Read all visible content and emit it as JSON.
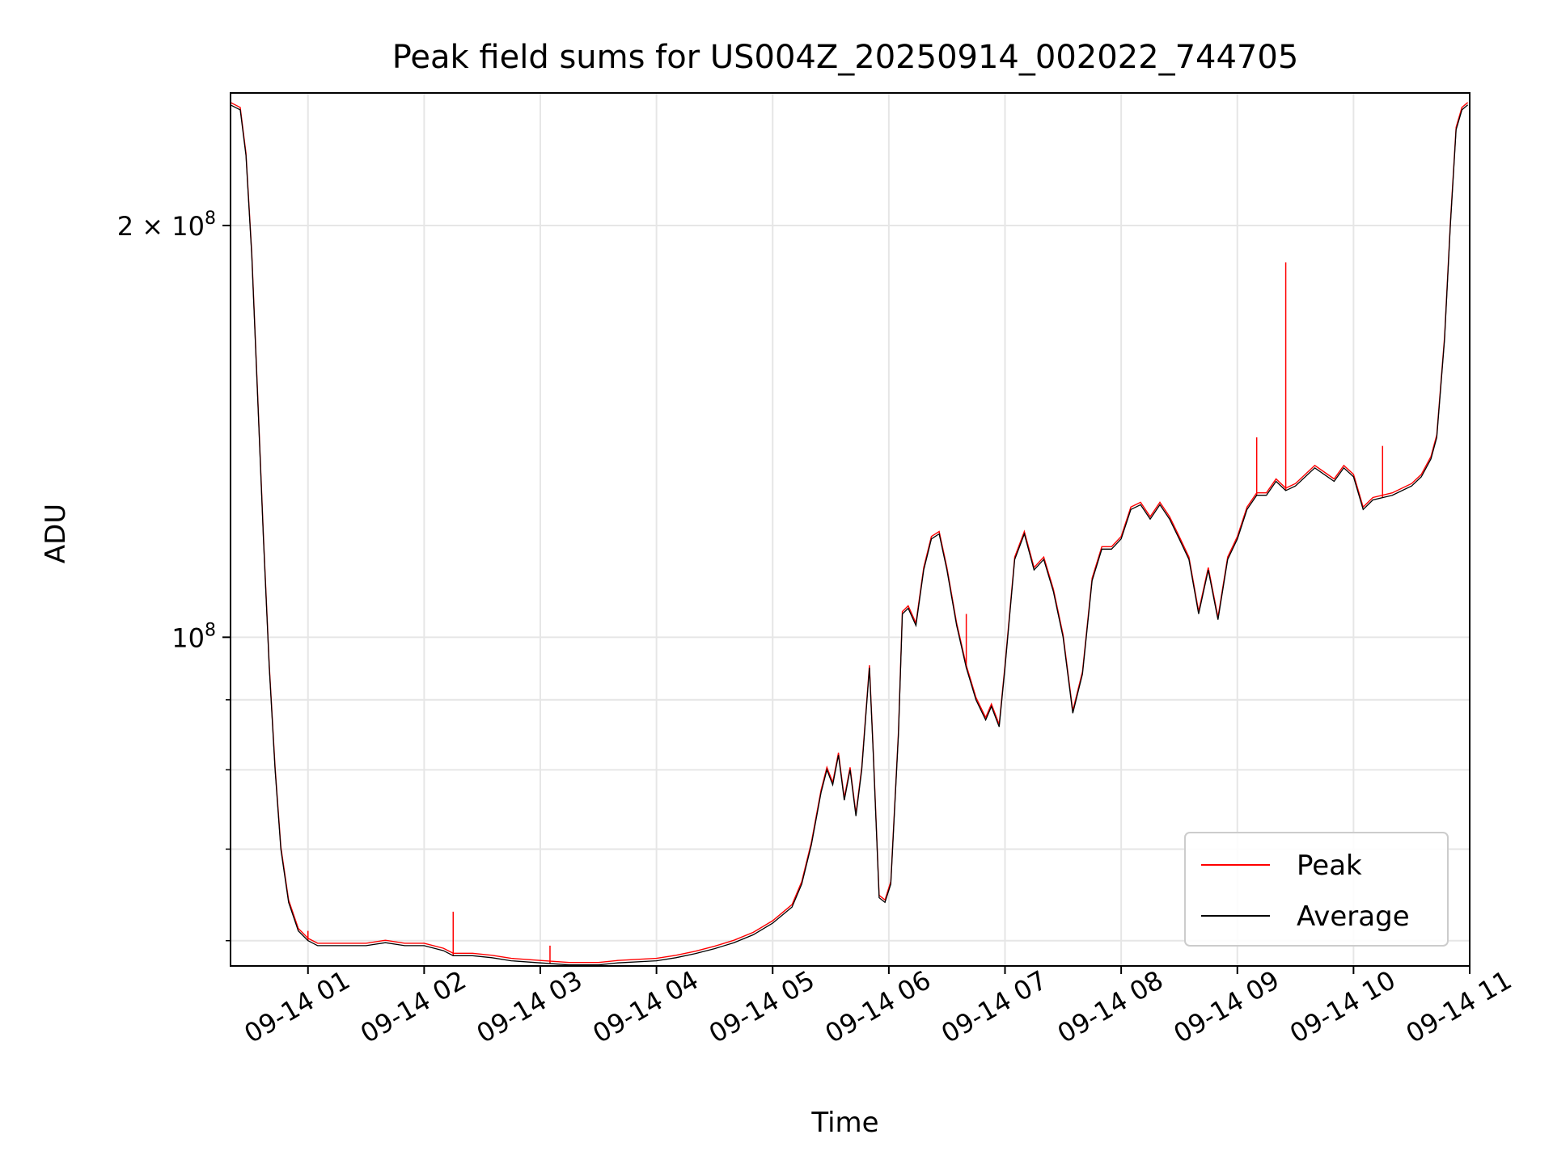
{
  "chart_data": {
    "type": "line",
    "title": "Peak field sums for US004Z_20250914_002022_744705",
    "xlabel": "Time",
    "ylabel": "ADU",
    "yscale": "log",
    "grid": true,
    "legend_position": "lower-right",
    "xlim": [
      "2025-09-14 00:20",
      "2025-09-14 11:00"
    ],
    "ylim": [
      57500000,
      250000000
    ],
    "x_ticks": [
      {
        "label": "09-14 01",
        "time": "2025-09-14 01:00"
      },
      {
        "label": "09-14 02",
        "time": "2025-09-14 02:00"
      },
      {
        "label": "09-14 03",
        "time": "2025-09-14 03:00"
      },
      {
        "label": "09-14 04",
        "time": "2025-09-14 04:00"
      },
      {
        "label": "09-14 05",
        "time": "2025-09-14 05:00"
      },
      {
        "label": "09-14 06",
        "time": "2025-09-14 06:00"
      },
      {
        "label": "09-14 07",
        "time": "2025-09-14 07:00"
      },
      {
        "label": "09-14 08",
        "time": "2025-09-14 08:00"
      },
      {
        "label": "09-14 09",
        "time": "2025-09-14 09:00"
      },
      {
        "label": "09-14 10",
        "time": "2025-09-14 10:00"
      },
      {
        "label": "09-14 11",
        "time": "2025-09-14 11:00"
      }
    ],
    "y_major_ticks": [
      {
        "value": 100000000,
        "base": "10",
        "exp": "8"
      },
      {
        "value": 200000000,
        "base": "2 × 10",
        "exp": "8"
      }
    ],
    "y_minor_ticks": [
      60000000,
      70000000,
      80000000,
      90000000
    ],
    "series": [
      {
        "name": "Average",
        "color": "#000000",
        "x": [
          "2025-09-14 00:20",
          "2025-09-14 00:25",
          "2025-09-14 00:28",
          "2025-09-14 00:31",
          "2025-09-14 00:34",
          "2025-09-14 00:37",
          "2025-09-14 00:40",
          "2025-09-14 00:43",
          "2025-09-14 00:46",
          "2025-09-14 00:50",
          "2025-09-14 00:55",
          "2025-09-14 01:00",
          "2025-09-14 01:05",
          "2025-09-14 01:10",
          "2025-09-14 01:20",
          "2025-09-14 01:30",
          "2025-09-14 01:40",
          "2025-09-14 01:50",
          "2025-09-14 02:00",
          "2025-09-14 02:10",
          "2025-09-14 02:15",
          "2025-09-14 02:25",
          "2025-09-14 02:35",
          "2025-09-14 02:45",
          "2025-09-14 03:00",
          "2025-09-14 03:15",
          "2025-09-14 03:30",
          "2025-09-14 03:40",
          "2025-09-14 04:00",
          "2025-09-14 04:10",
          "2025-09-14 04:20",
          "2025-09-14 04:30",
          "2025-09-14 04:40",
          "2025-09-14 04:50",
          "2025-09-14 05:00",
          "2025-09-14 05:10",
          "2025-09-14 05:15",
          "2025-09-14 05:20",
          "2025-09-14 05:25",
          "2025-09-14 05:28",
          "2025-09-14 05:31",
          "2025-09-14 05:34",
          "2025-09-14 05:37",
          "2025-09-14 05:40",
          "2025-09-14 05:43",
          "2025-09-14 05:46",
          "2025-09-14 05:50",
          "2025-09-14 05:52",
          "2025-09-14 05:55",
          "2025-09-14 05:58",
          "2025-09-14 06:01",
          "2025-09-14 06:05",
          "2025-09-14 06:07",
          "2025-09-14 06:10",
          "2025-09-14 06:14",
          "2025-09-14 06:18",
          "2025-09-14 06:22",
          "2025-09-14 06:26",
          "2025-09-14 06:30",
          "2025-09-14 06:35",
          "2025-09-14 06:40",
          "2025-09-14 06:45",
          "2025-09-14 06:50",
          "2025-09-14 06:53",
          "2025-09-14 06:57",
          "2025-09-14 07:00",
          "2025-09-14 07:05",
          "2025-09-14 07:10",
          "2025-09-14 07:15",
          "2025-09-14 07:20",
          "2025-09-14 07:25",
          "2025-09-14 07:30",
          "2025-09-14 07:35",
          "2025-09-14 07:40",
          "2025-09-14 07:45",
          "2025-09-14 07:50",
          "2025-09-14 07:55",
          "2025-09-14 08:00",
          "2025-09-14 08:05",
          "2025-09-14 08:10",
          "2025-09-14 08:15",
          "2025-09-14 08:20",
          "2025-09-14 08:25",
          "2025-09-14 08:30",
          "2025-09-14 08:35",
          "2025-09-14 08:40",
          "2025-09-14 08:45",
          "2025-09-14 08:50",
          "2025-09-14 08:55",
          "2025-09-14 09:00",
          "2025-09-14 09:05",
          "2025-09-14 09:10",
          "2025-09-14 09:15",
          "2025-09-14 09:20",
          "2025-09-14 09:25",
          "2025-09-14 09:30",
          "2025-09-14 09:40",
          "2025-09-14 09:50",
          "2025-09-14 09:55",
          "2025-09-14 10:00",
          "2025-09-14 10:05",
          "2025-09-14 10:10",
          "2025-09-14 10:20",
          "2025-09-14 10:30",
          "2025-09-14 10:35",
          "2025-09-14 10:40",
          "2025-09-14 10:43",
          "2025-09-14 10:47",
          "2025-09-14 10:50",
          "2025-09-14 10:53",
          "2025-09-14 10:56",
          "2025-09-14 10:59"
        ],
        "values": [
          245000000,
          243000000,
          225000000,
          190000000,
          150000000,
          118000000,
          95000000,
          80000000,
          70000000,
          64000000,
          61000000,
          60000000,
          59500000,
          59500000,
          59500000,
          59500000,
          59800000,
          59500000,
          59500000,
          59000000,
          58500000,
          58500000,
          58300000,
          58000000,
          57800000,
          57600000,
          57600000,
          57800000,
          58000000,
          58300000,
          58700000,
          59200000,
          59800000,
          60600000,
          61800000,
          63500000,
          66000000,
          70500000,
          77000000,
          80000000,
          78000000,
          82000000,
          76000000,
          80000000,
          74000000,
          80000000,
          95000000,
          82000000,
          64500000,
          64000000,
          66000000,
          85000000,
          104000000,
          105000000,
          102000000,
          112000000,
          118000000,
          119000000,
          112000000,
          102000000,
          95000000,
          90000000,
          87000000,
          89000000,
          86000000,
          95000000,
          114000000,
          119000000,
          112000000,
          114000000,
          108000000,
          100000000,
          88000000,
          94000000,
          110000000,
          116000000,
          116000000,
          118000000,
          124000000,
          125000000,
          122000000,
          125000000,
          122000000,
          118000000,
          114000000,
          104000000,
          112000000,
          103000000,
          114000000,
          118000000,
          124000000,
          127000000,
          127000000,
          130000000,
          128000000,
          129000000,
          133000000,
          130000000,
          133000000,
          131000000,
          124000000,
          126000000,
          127000000,
          129000000,
          131000000,
          135000000,
          140000000,
          165000000,
          200000000,
          235000000,
          243000000,
          245000000
        ]
      },
      {
        "name": "Peak",
        "color": "#ff0000",
        "spikes": [
          {
            "x": "2025-09-14 01:00",
            "value": 61000000
          },
          {
            "x": "2025-09-14 02:15",
            "value": 63000000
          },
          {
            "x": "2025-09-14 03:05",
            "value": 59500000
          },
          {
            "x": "2025-09-14 06:40",
            "value": 104000000
          },
          {
            "x": "2025-09-14 09:10",
            "value": 140000000
          },
          {
            "x": "2025-09-14 09:25",
            "value": 188000000
          },
          {
            "x": "2025-09-14 10:15",
            "value": 138000000
          }
        ]
      }
    ]
  }
}
